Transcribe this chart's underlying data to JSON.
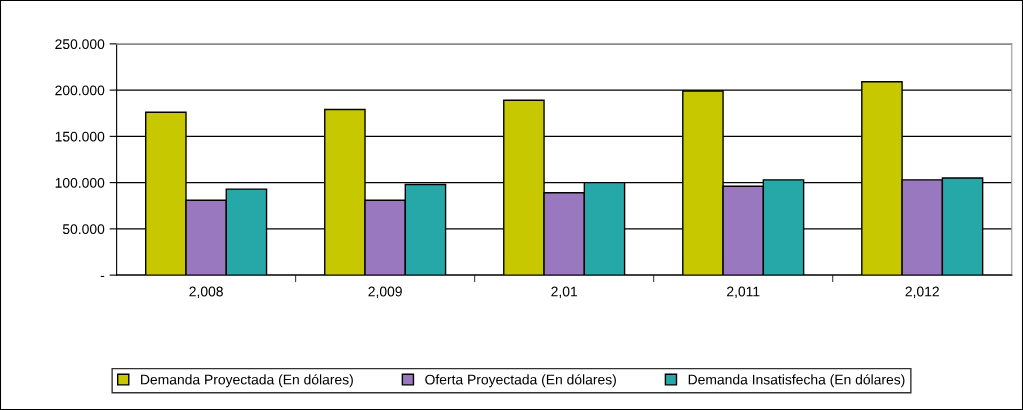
{
  "chart_data": {
    "type": "bar",
    "categories": [
      "2,008",
      "2,009",
      "2,01",
      "2,011",
      "2,012"
    ],
    "series": [
      {
        "name": "Demanda Proyectada (En dólares)",
        "color": "#c8c800",
        "values": [
          176,
          179,
          189,
          199,
          209
        ]
      },
      {
        "name": "Oferta Proyectada (En dólares)",
        "color": "#9a78c0",
        "values": [
          81,
          81,
          89,
          96,
          103
        ]
      },
      {
        "name": "Demanda Insatisfecha (En dólares)",
        "color": "#26a8a8",
        "values": [
          93,
          98,
          100,
          103,
          105
        ]
      }
    ],
    "ylim": [
      0,
      250
    ],
    "yticks": [
      {
        "value": 0,
        "label": "-"
      },
      {
        "value": 50,
        "label": "50.000"
      },
      {
        "value": 100,
        "label": "100.000"
      },
      {
        "value": 150,
        "label": "150.000"
      },
      {
        "value": 200,
        "label": "200.000"
      },
      {
        "value": 250,
        "label": "250.000"
      }
    ],
    "grid": "y",
    "legend": "bottom"
  }
}
